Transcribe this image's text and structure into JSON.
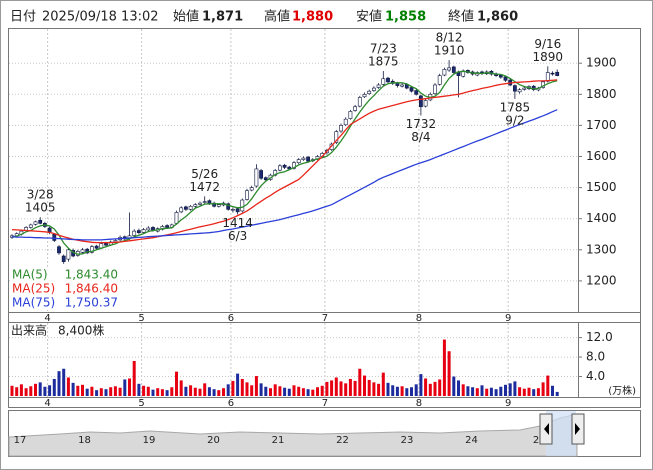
{
  "header": {
    "date_label": "日付",
    "datetime": "2025/09/18 13:02",
    "items": [
      {
        "label": "始値",
        "value": {
          "value": 1871,
          "label": "1,871"
        }
      },
      {
        "label": "高値",
        "value": {
          "value": 1880,
          "label": "1,880"
        }
      },
      {
        "label": "安値",
        "value": {
          "value": 1858,
          "label": "1,858"
        }
      },
      {
        "label": "終値",
        "value": {
          "value": 1860,
          "label": "1,860"
        }
      }
    ]
  },
  "chart_data": [
    {
      "type": "candlestick",
      "categories": [
        null,
        null,
        null,
        null,
        null,
        null,
        null,
        null,
        "4",
        null,
        null,
        null,
        null,
        null,
        null,
        null,
        null,
        null,
        null,
        null,
        null,
        null,
        null,
        null,
        null,
        null,
        null,
        null,
        "5",
        null,
        null,
        null,
        null,
        null,
        null,
        null,
        null,
        null,
        null,
        null,
        null,
        null,
        null,
        null,
        null,
        null,
        null,
        "6",
        null,
        null,
        null,
        null,
        null,
        null,
        null,
        null,
        null,
        null,
        null,
        null,
        null,
        null,
        null,
        null,
        null,
        null,
        null,
        "7",
        null,
        null,
        null,
        null,
        null,
        null,
        null,
        null,
        null,
        null,
        null,
        null,
        null,
        null,
        null,
        null,
        null,
        null,
        null,
        "8",
        null,
        null,
        null,
        null,
        null,
        null,
        null,
        null,
        null,
        null,
        null,
        null,
        null,
        null,
        null,
        null,
        null,
        null,
        "9",
        null,
        null,
        null,
        null,
        null,
        null,
        null,
        null,
        null,
        null
      ],
      "open": [
        1340,
        1345,
        1350,
        1362,
        1372,
        1382,
        1395,
        1385,
        1370,
        1350,
        1310,
        1280,
        1270,
        1298,
        1282,
        1292,
        1302,
        1292,
        1312,
        1306,
        1322,
        1316,
        1326,
        1332,
        1342,
        1336,
        1346,
        1362,
        1356,
        1364,
        1372,
        1360,
        1366,
        1378,
        1372,
        1385,
        1422,
        1438,
        1430,
        1440,
        1446,
        1452,
        1458,
        1450,
        1440,
        1444,
        1448,
        1428,
        1432,
        1425,
        1462,
        1492,
        1505,
        1555,
        1532,
        1526,
        1540,
        1556,
        1572,
        1566,
        1562,
        1580,
        1590,
        1598,
        1586,
        1592,
        1600,
        1612,
        1622,
        1645,
        1682,
        1702,
        1722,
        1748,
        1762,
        1792,
        1802,
        1812,
        1822,
        1832,
        1852,
        1842,
        1836,
        1826,
        1832,
        1822,
        1812,
        1795,
        1762,
        1782,
        1802,
        1832,
        1862,
        1878,
        1888,
        1872,
        1858,
        1877,
        1872,
        1862,
        1872,
        1866,
        1874,
        1866,
        1862,
        1856,
        1846,
        1828,
        1808,
        1816,
        1818,
        1826,
        1814,
        1822,
        1842,
        1868,
        1871
      ],
      "high": [
        1350,
        1356,
        1364,
        1376,
        1384,
        1394,
        1405,
        1390,
        1374,
        1354,
        1315,
        1285,
        1305,
        1304,
        1300,
        1306,
        1306,
        1315,
        1316,
        1326,
        1326,
        1330,
        1336,
        1346,
        1346,
        1420,
        1366,
        1368,
        1370,
        1376,
        1376,
        1372,
        1380,
        1382,
        1384,
        1426,
        1440,
        1442,
        1444,
        1450,
        1455,
        1472,
        1462,
        1455,
        1448,
        1455,
        1452,
        1436,
        1436,
        1465,
        1496,
        1506,
        1575,
        1560,
        1536,
        1545,
        1560,
        1575,
        1576,
        1570,
        1585,
        1595,
        1600,
        1602,
        1595,
        1605,
        1615,
        1625,
        1645,
        1685,
        1706,
        1726,
        1750,
        1766,
        1795,
        1806,
        1815,
        1826,
        1836,
        1875,
        1856,
        1848,
        1840,
        1835,
        1836,
        1826,
        1816,
        1798,
        1786,
        1806,
        1836,
        1866,
        1886,
        1910,
        1892,
        1876,
        1880,
        1880,
        1876,
        1874,
        1876,
        1877,
        1878,
        1870,
        1864,
        1858,
        1850,
        1832,
        1820,
        1824,
        1829,
        1830,
        1824,
        1845,
        1890,
        1874,
        1880
      ],
      "low": [
        1335,
        1340,
        1346,
        1358,
        1368,
        1378,
        1382,
        1370,
        1350,
        1325,
        1284,
        1255,
        1262,
        1276,
        1278,
        1288,
        1286,
        1288,
        1300,
        1302,
        1310,
        1312,
        1322,
        1328,
        1330,
        1332,
        1342,
        1350,
        1352,
        1360,
        1358,
        1356,
        1362,
        1368,
        1368,
        1380,
        1418,
        1425,
        1426,
        1436,
        1442,
        1448,
        1444,
        1436,
        1436,
        1440,
        1426,
        1420,
        1414,
        1420,
        1458,
        1488,
        1500,
        1525,
        1518,
        1522,
        1536,
        1552,
        1560,
        1555,
        1558,
        1576,
        1586,
        1580,
        1582,
        1588,
        1596,
        1606,
        1618,
        1640,
        1676,
        1698,
        1718,
        1744,
        1758,
        1788,
        1798,
        1808,
        1818,
        1828,
        1834,
        1830,
        1822,
        1822,
        1816,
        1806,
        1796,
        1732,
        1758,
        1778,
        1798,
        1828,
        1858,
        1872,
        1866,
        1790,
        1854,
        1866,
        1860,
        1858,
        1862,
        1862,
        1860,
        1856,
        1850,
        1840,
        1826,
        1785,
        1802,
        1812,
        1814,
        1810,
        1810,
        1818,
        1838,
        1860,
        1858
      ],
      "close": [
        1345,
        1352,
        1360,
        1372,
        1380,
        1390,
        1385,
        1375,
        1355,
        1330,
        1290,
        1262,
        1300,
        1280,
        1295,
        1300,
        1290,
        1310,
        1305,
        1320,
        1315,
        1325,
        1330,
        1340,
        1335,
        1345,
        1360,
        1355,
        1365,
        1370,
        1362,
        1368,
        1375,
        1372,
        1380,
        1420,
        1435,
        1430,
        1440,
        1445,
        1450,
        1455,
        1448,
        1440,
        1445,
        1450,
        1430,
        1430,
        1422,
        1460,
        1490,
        1500,
        1560,
        1530,
        1525,
        1540,
        1555,
        1570,
        1565,
        1560,
        1580,
        1590,
        1595,
        1585,
        1590,
        1600,
        1610,
        1620,
        1640,
        1680,
        1700,
        1720,
        1745,
        1760,
        1790,
        1800,
        1810,
        1820,
        1830,
        1850,
        1840,
        1835,
        1828,
        1830,
        1820,
        1810,
        1800,
        1760,
        1780,
        1800,
        1830,
        1860,
        1880,
        1885,
        1870,
        1860,
        1875,
        1870,
        1865,
        1870,
        1868,
        1872,
        1865,
        1860,
        1855,
        1845,
        1830,
        1810,
        1815,
        1820,
        1825,
        1815,
        1820,
        1840,
        1870,
        1865,
        1860
      ],
      "up_color": "#ffffff",
      "down_color": "#1b2a6e",
      "edge_color": "#101840",
      "series": [
        {
          "name": "MA(5)",
          "color": "#2e8b2e",
          "latest": {
            "value": 1843.4,
            "label": "1,843.40"
          },
          "values": [
            1340,
            1344,
            1350,
            1358,
            1362,
            1371,
            1377,
            1380,
            1377,
            1367,
            1347,
            1322,
            1305,
            1292,
            1286,
            1287,
            1293,
            1295,
            1300,
            1305,
            1310,
            1315,
            1319,
            1326,
            1329,
            1335,
            1342,
            1347,
            1352,
            1359,
            1362,
            1364,
            1368,
            1369,
            1371,
            1383,
            1396,
            1407,
            1421,
            1434,
            1440,
            1447,
            1448,
            1448,
            1448,
            1448,
            1443,
            1439,
            1435,
            1437,
            1446,
            1464,
            1486,
            1506,
            1521,
            1531,
            1542,
            1548,
            1551,
            1558,
            1564,
            1573,
            1578,
            1582,
            1588,
            1592,
            1596,
            1601,
            1613,
            1630,
            1650,
            1672,
            1697,
            1721,
            1743,
            1763,
            1781,
            1796,
            1812,
            1826,
            1834,
            1837,
            1837,
            1837,
            1833,
            1825,
            1818,
            1804,
            1794,
            1790,
            1794,
            1806,
            1830,
            1851,
            1865,
            1872,
            1874,
            1872,
            1868,
            1868,
            1867,
            1869,
            1868,
            1865,
            1864,
            1859,
            1851,
            1841,
            1831,
            1825,
            1821,
            1817,
            1819,
            1827,
            1834,
            1840,
            1843.4
          ]
        },
        {
          "name": "MA(25)",
          "color": "#e8261c",
          "latest": {
            "value": 1846.4,
            "label": "1,846.40"
          },
          "values": [
            1365,
            1364,
            1363,
            1362,
            1361,
            1360,
            1359,
            1358,
            1356,
            1352,
            1347,
            1342,
            1338,
            1334,
            1331,
            1328,
            1326,
            1324,
            1323,
            1323,
            1323,
            1323,
            1324,
            1325,
            1327,
            1329,
            1331,
            1333,
            1335,
            1337,
            1339,
            1342,
            1345,
            1348,
            1351,
            1355,
            1359,
            1363,
            1366,
            1370,
            1374,
            1377,
            1380,
            1384,
            1388,
            1392,
            1397,
            1403,
            1410,
            1417,
            1425,
            1435,
            1446,
            1456,
            1466,
            1475,
            1485,
            1494,
            1502,
            1510,
            1518,
            1526,
            1540,
            1555,
            1570,
            1585,
            1600,
            1617,
            1634,
            1651,
            1668,
            1686,
            1703,
            1712,
            1721,
            1730,
            1739,
            1746,
            1752,
            1756,
            1760,
            1764,
            1768,
            1772,
            1776,
            1779,
            1782,
            1784,
            1786,
            1788,
            1790,
            1792,
            1794,
            1796,
            1798,
            1800,
            1804,
            1808,
            1812,
            1815,
            1819,
            1822,
            1825,
            1829,
            1832,
            1834,
            1836,
            1838,
            1839,
            1840,
            1841,
            1842,
            1843,
            1843,
            1844,
            1845,
            1846.4
          ]
        },
        {
          "name": "MA(75)",
          "color": "#2a3fd8",
          "latest": {
            "value": 1750.37,
            "label": "1,750.37"
          },
          "values": [
            1342,
            1341,
            1341,
            1340,
            1340,
            1339,
            1339,
            1338,
            1338,
            1337,
            1336,
            1335,
            1334,
            1333,
            1333,
            1332,
            1332,
            1332,
            1332,
            1332,
            1333,
            1334,
            1335,
            1336,
            1337,
            1338,
            1339,
            1340,
            1341,
            1342,
            1343,
            1344,
            1345,
            1346,
            1347,
            1348,
            1349,
            1350,
            1351,
            1352,
            1353,
            1354,
            1355,
            1357,
            1359,
            1362,
            1365,
            1367,
            1370,
            1373,
            1376,
            1379,
            1382,
            1385,
            1388,
            1391,
            1394,
            1397,
            1401,
            1405,
            1409,
            1413,
            1417,
            1421,
            1425,
            1430,
            1435,
            1440,
            1445,
            1453,
            1461,
            1469,
            1477,
            1485,
            1493,
            1501,
            1509,
            1517,
            1526,
            1533,
            1539,
            1545,
            1551,
            1557,
            1563,
            1569,
            1575,
            1580,
            1585,
            1590,
            1596,
            1602,
            1608,
            1614,
            1620,
            1626,
            1632,
            1638,
            1644,
            1650,
            1655,
            1661,
            1667,
            1673,
            1679,
            1685,
            1691,
            1697,
            1703,
            1708,
            1714,
            1719,
            1725,
            1731,
            1737,
            1744,
            1750.37
          ]
        }
      ],
      "annotations": [
        {
          "date": "3/28",
          "value": 1405
        },
        {
          "date": "5/26",
          "value": 1472
        },
        {
          "date": "6/3",
          "value": 1414
        },
        {
          "date": "7/23",
          "value": 1875
        },
        {
          "date": "8/4",
          "value": 1732
        },
        {
          "date": "8/12",
          "value": 1910
        },
        {
          "date": "9/2",
          "value": 1785
        },
        {
          "date": "9/16",
          "value": 1890
        }
      ],
      "ylim": [
        1100,
        2010
      ],
      "yticks": [
        1200,
        1300,
        1400,
        1500,
        1600,
        1700,
        1800,
        1900
      ],
      "grid": true
    },
    {
      "type": "bar",
      "title": "出来高",
      "latest": {
        "value": 0.84,
        "label": "8,400株"
      },
      "unit_label": "(万株)",
      "up_color": "#e60012",
      "down_color": "#1d2c9c",
      "values": [
        2.1,
        1.8,
        2.4,
        1.6,
        2.0,
        2.5,
        2.8,
        1.9,
        2.2,
        3.5,
        5.1,
        5.6,
        3.8,
        2.7,
        2.1,
        2.3,
        1.5,
        1.9,
        1.2,
        1.6,
        1.4,
        1.8,
        2.0,
        1.7,
        3.4,
        3.6,
        7.2,
        2.5,
        2.1,
        1.9,
        1.3,
        1.6,
        1.4,
        1.2,
        1.8,
        5.0,
        3.2,
        1.9,
        2.2,
        1.7,
        1.5,
        2.6,
        1.8,
        1.4,
        1.2,
        1.6,
        2.4,
        3.1,
        4.6,
        3.5,
        2.8,
        2.2,
        4.1,
        2.6,
        1.9,
        1.6,
        2.4,
        2.0,
        1.7,
        1.5,
        2.2,
        1.9,
        1.6,
        1.4,
        1.3,
        1.8,
        2.1,
        2.9,
        3.2,
        3.8,
        3.0,
        2.6,
        3.5,
        3.1,
        5.6,
        4.2,
        3.3,
        2.8,
        2.5,
        4.8,
        2.7,
        2.2,
        1.9,
        2.0,
        1.6,
        1.8,
        2.4,
        4.5,
        3.6,
        2.5,
        2.9,
        3.4,
        11.6,
        9.2,
        4.0,
        3.2,
        2.4,
        2.0,
        1.8,
        1.6,
        2.2,
        1.5,
        1.7,
        1.4,
        1.9,
        2.3,
        2.6,
        3.0,
        1.8,
        1.5,
        1.7,
        1.4,
        1.6,
        2.8,
        4.2,
        2.1,
        0.84
      ],
      "ylim": [
        0,
        15
      ],
      "yticks": [
        {
          "value": 4,
          "label": "4.0"
        },
        {
          "value": 8,
          "label": "8.0"
        },
        {
          "value": 12,
          "label": "12.0"
        }
      ],
      "grid": true
    }
  ],
  "navigator": {
    "labels": [
      "17",
      "18",
      "19",
      "20",
      "21",
      "22",
      "23",
      "24",
      "2"
    ]
  }
}
